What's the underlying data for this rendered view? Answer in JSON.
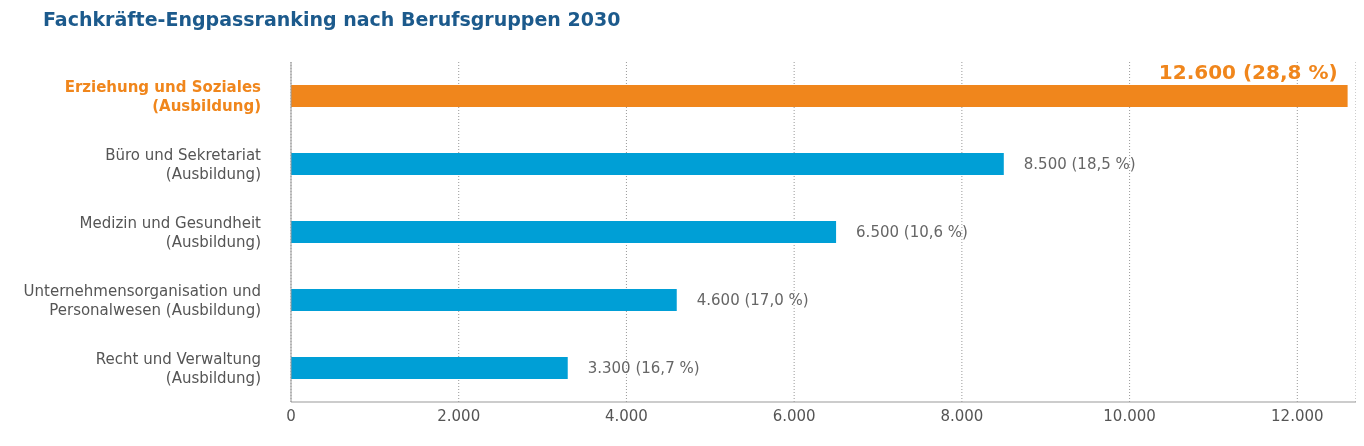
{
  "chart_data": {
    "type": "bar",
    "orientation": "horizontal",
    "title": "Fachkräfte-Engpassranking nach Berufsgruppen 2030",
    "categories": [
      "Erziehung und Soziales (Ausbildung)",
      "Büro und Sekretariat (Ausbildung)",
      "Medizin und Gesundheit (Ausbildung)",
      "Unternehmensorganisation und Personalwesen (Ausbildung)",
      "Recht und Verwaltung (Ausbildung)"
    ],
    "values": [
      12600,
      8500,
      6500,
      4600,
      3300
    ],
    "colors": [
      "#f0861c",
      "#009fd6",
      "#009fd6",
      "#009fd6",
      "#009fd6"
    ],
    "value_labels": [
      "12.600 (28,8 %)",
      "8.500 (18,5 %)",
      "6.500 (10,6 %)",
      "4.600 (17,0 %)",
      "3.300 (16,7 %)"
    ],
    "xlim": [
      0,
      12700
    ],
    "xticks": [
      0,
      {
        "value": 2000,
        "label": "2.000"
      },
      {
        "value": 4000,
        "label": "4.000"
      },
      {
        "value": 6000,
        "label": "6.000"
      },
      {
        "value": 8000,
        "label": "8.000"
      },
      {
        "value": 10000,
        "label": "10.000"
      },
      {
        "value": 12000,
        "label": "12.000"
      }
    ],
    "grid": "x"
  }
}
